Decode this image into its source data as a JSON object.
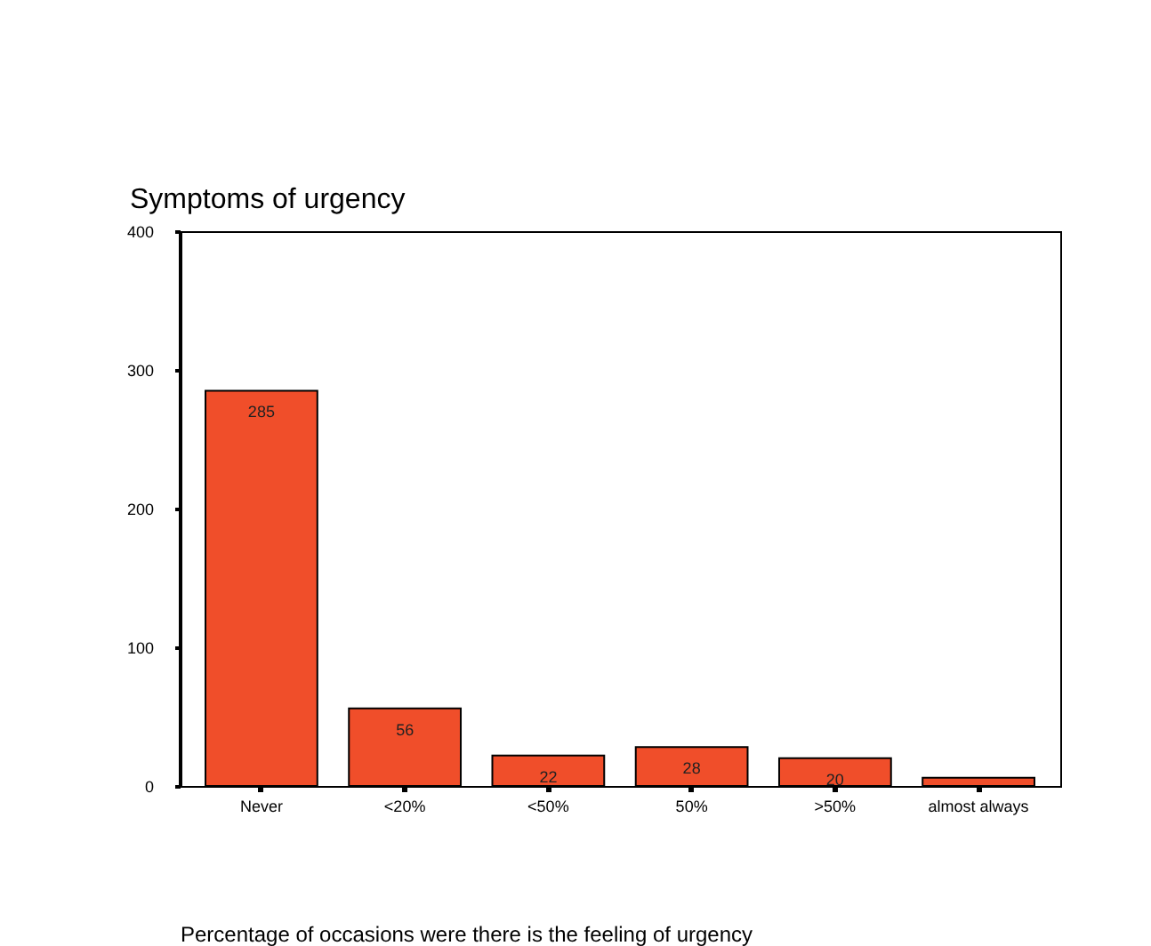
{
  "chart_data": {
    "type": "bar",
    "title": "Symptoms of urgency",
    "xlabel": "Percentage of occasions were there is the feeling of urgency",
    "categories": [
      "Never",
      "<20%",
      "<50%",
      "50%",
      ">50%",
      "almost always"
    ],
    "values": [
      285,
      56,
      22,
      28,
      20,
      6
    ],
    "value_labels": [
      "285",
      "56",
      "22",
      "28",
      "20",
      null
    ],
    "color": "#f04e2a",
    "ylim": [
      0,
      400
    ],
    "yticks": [
      0,
      100,
      200,
      300,
      400
    ],
    "grid": false
  }
}
